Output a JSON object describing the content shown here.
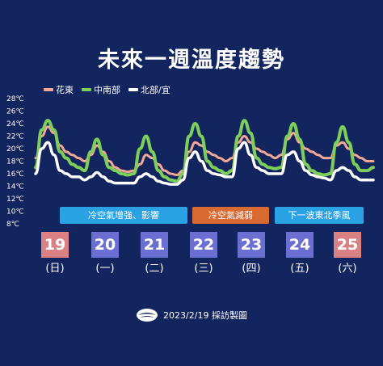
{
  "title": "未來一週溫度趨勢",
  "footer": {
    "text": "2023/2/19 採訪製圖"
  },
  "colors": {
    "background": "#13255e",
    "hualien": "#f2a896",
    "central_south": "#7dcf5a",
    "north": "#ffffff"
  },
  "banners": [
    {
      "text": "冷空氣增強、影響",
      "color": "#2aa2e3"
    },
    {
      "text": "冷空氣減弱",
      "color": "#d96a32"
    },
    {
      "text": "下一波東北季風",
      "color": "#2aa2e3"
    }
  ],
  "days": [
    {
      "date": "19",
      "weekday": "(日)",
      "color": "#d98183"
    },
    {
      "date": "20",
      "weekday": "(一)",
      "color": "#6b6fd1"
    },
    {
      "date": "21",
      "weekday": "(二)",
      "color": "#6b6fd1"
    },
    {
      "date": "22",
      "weekday": "(三)",
      "color": "#6b6fd1"
    },
    {
      "date": "23",
      "weekday": "(四)",
      "color": "#6b6fd1"
    },
    {
      "date": "24",
      "weekday": "(五)",
      "color": "#6b6fd1"
    },
    {
      "date": "25",
      "weekday": "(六)",
      "color": "#d98183"
    }
  ],
  "chart_data": {
    "type": "line",
    "ylim": [
      8,
      28
    ],
    "y_ticks": [
      "28℃",
      "26℃",
      "24℃",
      "22℃",
      "20℃",
      "18℃",
      "16℃",
      "14℃",
      "12℃",
      "10℃",
      "8℃"
    ],
    "x_note": "7 days, 8 samples per day",
    "series": [
      {
        "name": "花東",
        "color": "#f2a896",
        "values": [
          18.5,
          22,
          23.5,
          22.5,
          20.5,
          19.5,
          19,
          18.5,
          18,
          19,
          20.5,
          19.5,
          18,
          17,
          16.5,
          16.3,
          16.5,
          17.5,
          19,
          18.5,
          17.5,
          16.5,
          16,
          15.8,
          16.5,
          19.5,
          21,
          20.5,
          19.5,
          19,
          18.5,
          18,
          18.5,
          21,
          22,
          21,
          20,
          19.5,
          19,
          18.5,
          19,
          21.5,
          22.5,
          21,
          20,
          19.5,
          19,
          18.5,
          18.5,
          20.5,
          21,
          20,
          19,
          18.5,
          18,
          18
        ]
      },
      {
        "name": "中南部",
        "color": "#7dcf5a",
        "values": [
          17,
          23,
          24.5,
          23,
          19.5,
          18.5,
          17.5,
          17,
          16.5,
          19.5,
          21.5,
          19,
          17,
          16.5,
          16,
          15.8,
          16,
          20,
          22,
          19.5,
          16.5,
          15.5,
          15,
          14.8,
          16,
          22,
          24,
          22,
          18,
          17,
          16.5,
          16,
          16.5,
          22,
          24.5,
          22.5,
          18.5,
          17.5,
          17,
          16.8,
          17,
          22,
          24,
          21.5,
          17.5,
          16.5,
          16,
          15.8,
          16,
          21,
          23.5,
          21,
          17.5,
          16.5,
          16.5,
          17
        ]
      },
      {
        "name": "北部/宜",
        "color": "#ffffff",
        "values": [
          16,
          20,
          21,
          19,
          16.5,
          16,
          15.5,
          15.5,
          15,
          15.5,
          16.2,
          15.5,
          14.8,
          14.5,
          14.5,
          14.5,
          14.5,
          15.5,
          16,
          15.5,
          14.8,
          14.5,
          14.3,
          14.3,
          15,
          18.5,
          19.5,
          18,
          16.5,
          16,
          15.8,
          15.5,
          15.5,
          20,
          21,
          19,
          17,
          16.5,
          16,
          16,
          16,
          19,
          19.5,
          18,
          16.5,
          15.8,
          15.5,
          15.3,
          15,
          16.5,
          17,
          16.5,
          15.5,
          15,
          15,
          15
        ]
      }
    ]
  }
}
